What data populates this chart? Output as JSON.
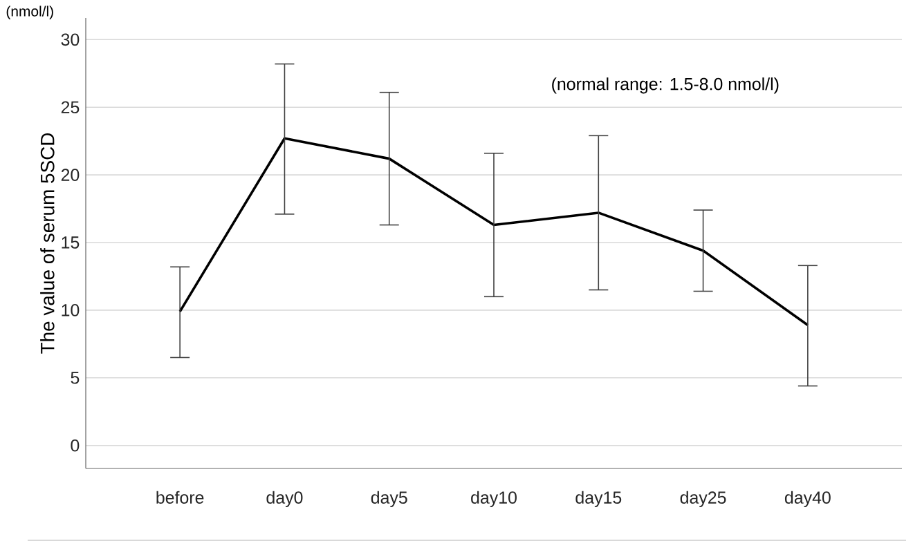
{
  "chart_data": {
    "type": "line",
    "ylabel": "The value of serum 5SCD",
    "annotations": [
      "(nmol/l)",
      "(normal range: 1.5-8.0 nmol/l)"
    ],
    "categories": [
      "before",
      "day0",
      "day5",
      "day10",
      "day15",
      "day25",
      "day40"
    ],
    "series": [
      {
        "color": "#000000",
        "values": [
          9.9,
          22.7,
          21.2,
          16.3,
          17.2,
          14.4,
          8.9
        ],
        "errors": [
          [
            6.5,
            13.2
          ],
          [
            17.1,
            28.2
          ],
          [
            16.3,
            26.1
          ],
          [
            11.0,
            21.6
          ],
          [
            11.5,
            22.9
          ],
          [
            11.4,
            17.4
          ],
          [
            4.4,
            13.3
          ]
        ]
      }
    ],
    "ylim": [
      -1.7,
      31.6
    ],
    "yticks": [
      0,
      5,
      10,
      15,
      20,
      25,
      30
    ],
    "grid": "y",
    "marker": "none",
    "line_style": "solid"
  }
}
